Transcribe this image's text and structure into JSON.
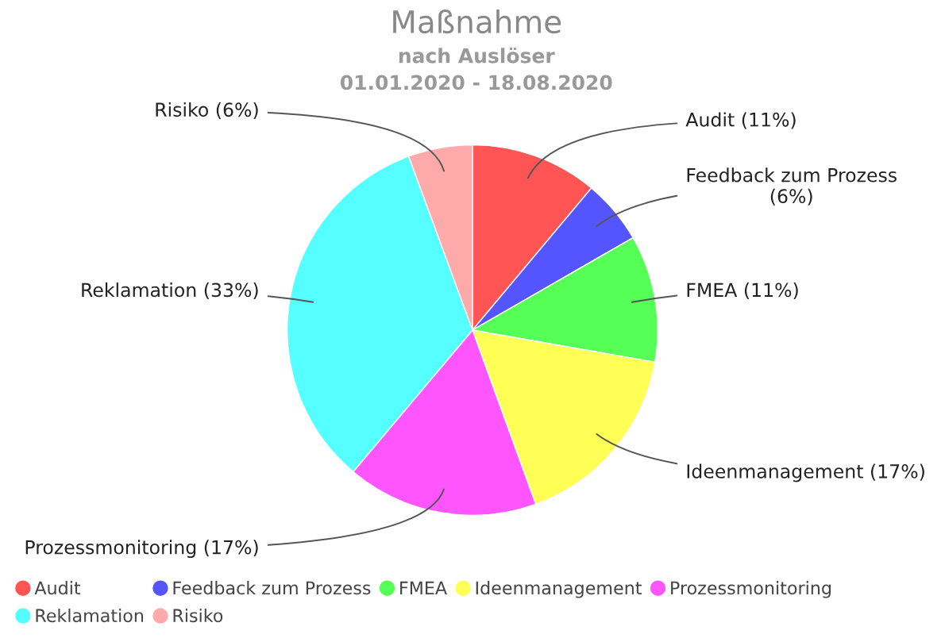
{
  "chart_data": {
    "type": "pie",
    "title": "Maßnahme",
    "subtitle": "nach Auslöser\n01.01.2020 - 18.08.2020",
    "categories": [
      "Audit",
      "Feedback zum Prozess",
      "FMEA",
      "Ideenmanagement",
      "Prozessmonitoring",
      "Reklamation",
      "Risiko"
    ],
    "values": [
      11.1,
      5.6,
      11.1,
      16.7,
      16.7,
      33.3,
      5.6
    ],
    "value_labels": [
      "Audit (11%)",
      "Feedback zum Prozess\n(6%)",
      "FMEA (11%)",
      "Ideenmanagement (17%)",
      "Prozessmonitoring (17%)",
      "Reklamation (33%)",
      "Risiko (6%)"
    ],
    "colors": [
      "#ff5555",
      "#5555ff",
      "#55ff55",
      "#ffff55",
      "#ff55ff",
      "#55ffff",
      "#ffaaaa"
    ],
    "legend": "bottom left"
  }
}
